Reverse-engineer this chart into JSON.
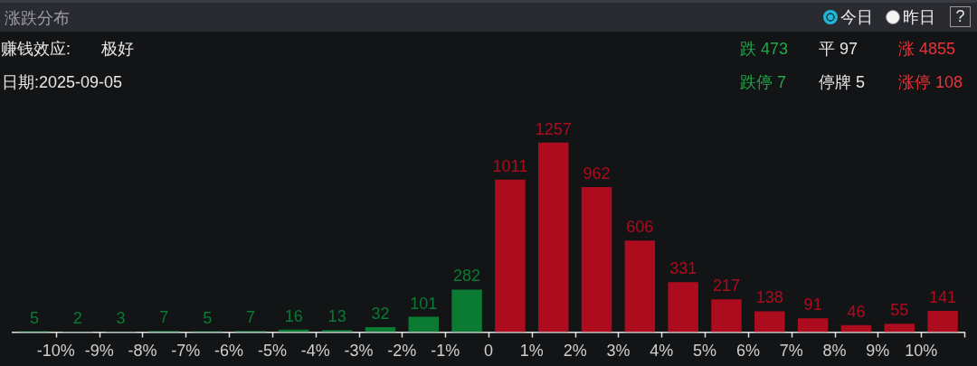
{
  "chart_data": {
    "type": "bar",
    "title": "涨跌分布",
    "annotations": [
      "今日",
      "昨日",
      "?",
      "赚钱效应:",
      "极好",
      "日期:2025-09-05",
      "跌 473",
      "平 97",
      "涨 4855",
      "跌停 7",
      "停牌 5",
      "涨停 108"
    ],
    "x": [
      -10.5,
      -9.5,
      -8.5,
      -7.5,
      -6.5,
      -5.5,
      -4.5,
      -3.5,
      -2.5,
      -1.5,
      -0.5,
      0.5,
      1.5,
      2.5,
      3.5,
      4.5,
      5.5,
      6.5,
      7.5,
      8.5,
      9.5,
      10.5
    ],
    "values": [
      5,
      2,
      3,
      7,
      5,
      7,
      16,
      13,
      32,
      101,
      282,
      1011,
      1257,
      962,
      606,
      331,
      217,
      138,
      91,
      46,
      55,
      141
    ],
    "colors": [
      "#0b7a33",
      "#0b7a33",
      "#0b7a33",
      "#0b7a33",
      "#0b7a33",
      "#0b7a33",
      "#0b7a33",
      "#0b7a33",
      "#0b7a33",
      "#0b7a33",
      "#0b7a33",
      "#ad0c1f",
      "#ad0c1f",
      "#ad0c1f",
      "#ad0c1f",
      "#ad0c1f",
      "#ad0c1f",
      "#ad0c1f",
      "#ad0c1f",
      "#ad0c1f",
      "#ad0c1f",
      "#ad0c1f"
    ],
    "xlim": [
      -11,
      11
    ],
    "xticks": [
      {
        "value": -10,
        "label": "-10%"
      },
      {
        "value": -9,
        "label": "-9%"
      },
      {
        "value": -8,
        "label": "-8%"
      },
      {
        "value": -7,
        "label": "-7%"
      },
      {
        "value": -6,
        "label": "-6%"
      },
      {
        "value": -5,
        "label": "-5%"
      },
      {
        "value": -4,
        "label": "-4%"
      },
      {
        "value": -3,
        "label": "-3%"
      },
      {
        "value": -2,
        "label": "-2%"
      },
      {
        "value": -1,
        "label": "-1%"
      },
      0,
      {
        "value": 1,
        "label": "1%"
      },
      {
        "value": 2,
        "label": "2%"
      },
      {
        "value": 3,
        "label": "3%"
      },
      {
        "value": 4,
        "label": "4%"
      },
      {
        "value": 5,
        "label": "5%"
      },
      {
        "value": 6,
        "label": "6%"
      },
      {
        "value": 7,
        "label": "7%"
      },
      {
        "value": 8,
        "label": "8%"
      },
      {
        "value": 9,
        "label": "9%"
      },
      {
        "value": 10,
        "label": "10%"
      },
      {
        "value": 11,
        "label": null
      }
    ],
    "data_labels": true
  }
}
